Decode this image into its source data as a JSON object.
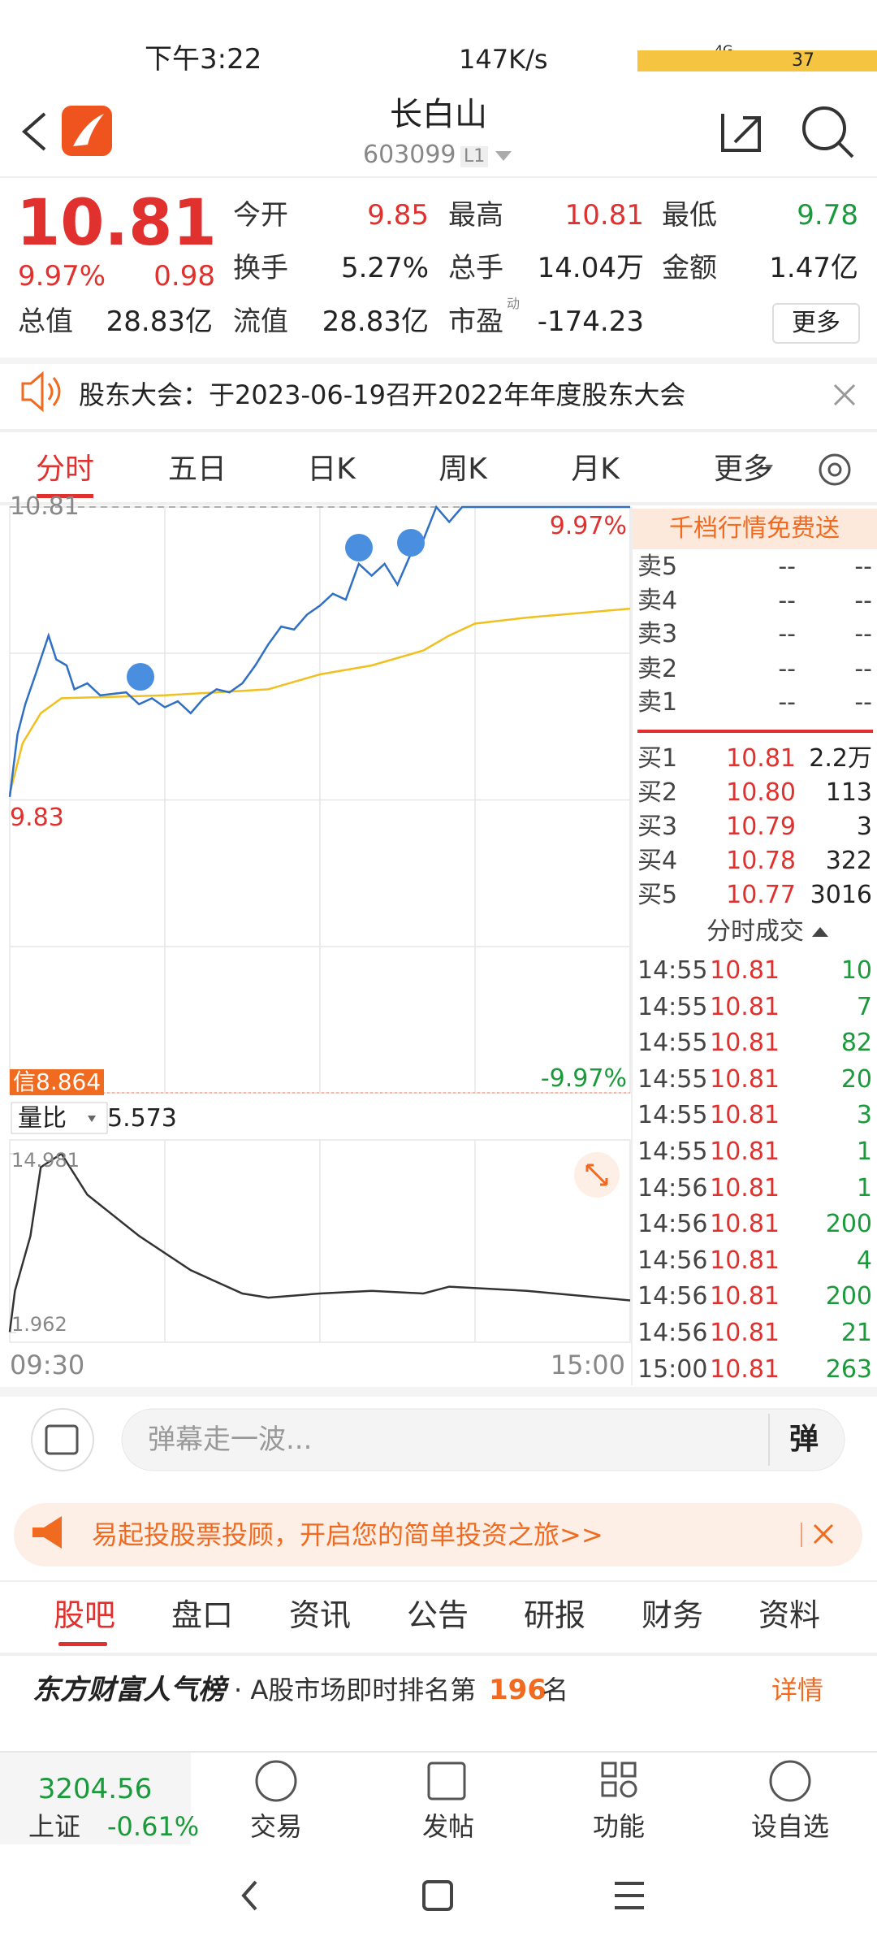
{
  "status_bar": {
    "time": "下午3:22",
    "speed": "147K/s",
    "network": "4G",
    "battery": "37"
  },
  "header": {
    "title": "长白山",
    "code": "603099",
    "level": "L1"
  },
  "quote": {
    "price": "10.81",
    "change_pct": "9.97%",
    "change": "0.98",
    "more": "更多",
    "fields": [
      {
        "label": "今开",
        "value": "9.85",
        "color": "#e0312e"
      },
      {
        "label": "最高",
        "value": "10.81",
        "color": "#e0312e"
      },
      {
        "label": "最低",
        "value": "9.78",
        "color": "#1a9a3a"
      },
      {
        "label": "换手",
        "value": "5.27%",
        "color": "#222222"
      },
      {
        "label": "总手",
        "value": "14.04万",
        "color": "#222222"
      },
      {
        "label": "金额",
        "value": "1.47亿",
        "color": "#222222"
      },
      {
        "label": "总值",
        "value": "28.83亿",
        "color": "#222222"
      },
      {
        "label": "流值",
        "value": "28.83亿",
        "color": "#222222"
      },
      {
        "label": "市盈",
        "value": "-174.23",
        "color": "#222222",
        "sup": "动"
      }
    ]
  },
  "notice": "股东大会：于2023-06-19召开2022年年度股东大会",
  "chart_tabs": [
    "分时",
    "五日",
    "日K",
    "周K",
    "月K",
    "更多"
  ],
  "intraday": {
    "type": "line",
    "ylim": [
      8.85,
      10.81
    ],
    "yticks": [
      9.83,
      10.81
    ],
    "top_pct": "9.97%",
    "bottom_pct": "-9.97%",
    "badge": "信8.864",
    "xlim": [
      0,
      240
    ],
    "price": {
      "color": "#2f6fc4",
      "x": [
        0,
        3,
        6,
        10,
        15,
        18,
        22,
        25,
        30,
        35,
        45,
        50,
        55,
        60,
        65,
        70,
        75,
        80,
        85,
        90,
        95,
        100,
        105,
        110,
        115,
        120,
        125,
        130,
        135,
        140,
        145,
        150,
        155,
        160,
        165,
        170,
        175,
        180,
        240
      ],
      "values": [
        9.84,
        10.05,
        10.15,
        10.25,
        10.38,
        10.3,
        10.28,
        10.2,
        10.22,
        10.18,
        10.19,
        10.15,
        10.17,
        10.14,
        10.16,
        10.12,
        10.17,
        10.2,
        10.19,
        10.22,
        10.28,
        10.35,
        10.41,
        10.4,
        10.45,
        10.48,
        10.52,
        10.5,
        10.62,
        10.58,
        10.62,
        10.55,
        10.65,
        10.7,
        10.81,
        10.76,
        10.81,
        10.81,
        10.81
      ]
    },
    "average": {
      "color": "#f0c020",
      "x": [
        0,
        5,
        12,
        20,
        60,
        100,
        120,
        140,
        160,
        170,
        180,
        200,
        240
      ],
      "values": [
        9.85,
        10.02,
        10.12,
        10.17,
        10.18,
        10.2,
        10.25,
        10.28,
        10.33,
        10.38,
        10.42,
        10.44,
        10.47
      ]
    },
    "time_labels": [
      "09:30",
      "15:00"
    ]
  },
  "vol_ratio": {
    "type": "line",
    "label": "量比",
    "value": "5.573",
    "ylim": [
      1.962,
      14.981
    ],
    "yticks": [
      1.962,
      14.981
    ],
    "color": "#333333",
    "x": [
      0,
      2,
      8,
      12,
      20,
      30,
      50,
      70,
      90,
      100,
      120,
      140,
      160,
      170,
      200,
      240
    ],
    "values": [
      2,
      5,
      9,
      14,
      14.98,
      12,
      9,
      6.5,
      4.8,
      4.5,
      4.8,
      5,
      4.8,
      5.3,
      5,
      4.3
    ]
  },
  "order_book": {
    "banner": "千档行情免费送",
    "asks": [
      [
        "卖5",
        "--",
        "--"
      ],
      [
        "卖4",
        "--",
        "--"
      ],
      [
        "卖3",
        "--",
        "--"
      ],
      [
        "卖2",
        "--",
        "--"
      ],
      [
        "卖1",
        "--",
        "--"
      ]
    ],
    "bids": [
      [
        "买1",
        "10.81",
        "2.2万"
      ],
      [
        "买2",
        "10.80",
        "113"
      ],
      [
        "买3",
        "10.79",
        "3"
      ],
      [
        "买4",
        "10.78",
        "322"
      ],
      [
        "买5",
        "10.77",
        "3016"
      ]
    ]
  },
  "trades": {
    "title": "分时成交",
    "rows": [
      [
        "14:55",
        "10.81",
        "10"
      ],
      [
        "14:55",
        "10.81",
        "7"
      ],
      [
        "14:55",
        "10.81",
        "82"
      ],
      [
        "14:55",
        "10.81",
        "20"
      ],
      [
        "14:55",
        "10.81",
        "3"
      ],
      [
        "14:55",
        "10.81",
        "1"
      ],
      [
        "14:56",
        "10.81",
        "1"
      ],
      [
        "14:56",
        "10.81",
        "200"
      ],
      [
        "14:56",
        "10.81",
        "4"
      ],
      [
        "14:56",
        "10.81",
        "200"
      ],
      [
        "14:56",
        "10.81",
        "21"
      ],
      [
        "15:00",
        "10.81",
        "263"
      ]
    ]
  },
  "comment": {
    "placeholder": "弹幕走一波...",
    "button": "弹"
  },
  "ad": "易起投股票投顾，开启您的简单投资之旅>>",
  "bottom_tabs": [
    "股吧",
    "盘口",
    "资讯",
    "公告",
    "研报",
    "财务",
    "资料"
  ],
  "rank": {
    "brand": "东方财富人气榜",
    "text": "· A股市场即时排名第",
    "rank": "196",
    "suffix": "名",
    "link": "详情"
  },
  "index": {
    "value": "3204.56",
    "name": "上证",
    "change": "-0.61%"
  },
  "nav": [
    "交易",
    "发帖",
    "功能",
    "设自选"
  ]
}
